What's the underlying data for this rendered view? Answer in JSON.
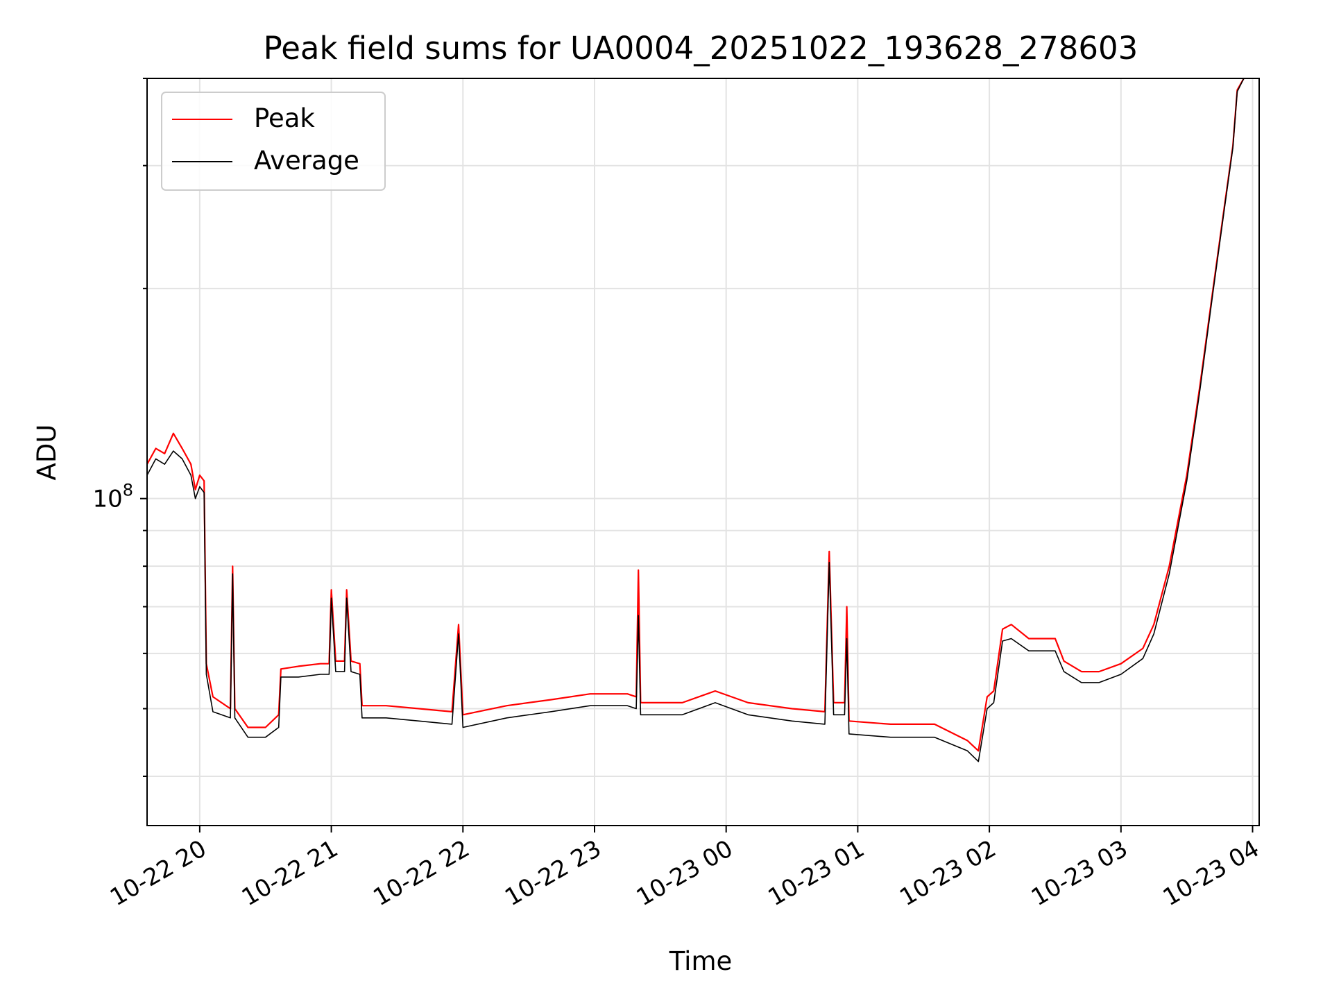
{
  "chart_data": {
    "type": "line",
    "title": "Peak field sums for UA0004_20251022_193628_278603",
    "xlabel": "Time",
    "ylabel": "ADU",
    "y_scale": "log",
    "ytick_labels": [
      {
        "value": 100000000,
        "base": "10",
        "exp": "8"
      }
    ],
    "xlim": [
      "2025-10-22 19:36",
      "2025-10-23 04:03"
    ],
    "ylim": [
      34000000,
      400000000
    ],
    "xtick_labels": [
      {
        "t": "2025-10-22 20:00",
        "label": "10-22 20"
      },
      {
        "t": "2025-10-22 21:00",
        "label": "10-22 21"
      },
      {
        "t": "2025-10-22 22:00",
        "label": "10-22 22"
      },
      {
        "t": "2025-10-22 23:00",
        "label": "10-22 23"
      },
      {
        "t": "2025-10-23 00:00",
        "label": "10-23 00"
      },
      {
        "t": "2025-10-23 01:00",
        "label": "10-23 01"
      },
      {
        "t": "2025-10-23 02:00",
        "label": "10-23 02"
      },
      {
        "t": "2025-10-23 03:00",
        "label": "10-23 03"
      },
      {
        "t": "2025-10-23 04:00",
        "label": "10-23 04"
      }
    ],
    "grid": true,
    "legend_position": "top-left",
    "series": [
      {
        "name": "Peak",
        "color": "#ff0000",
        "points": [
          [
            "2025-10-22 19:36",
            112000000
          ],
          [
            "2025-10-22 19:40",
            118000000
          ],
          [
            "2025-10-22 19:44",
            116000000
          ],
          [
            "2025-10-22 19:48",
            124000000
          ],
          [
            "2025-10-22 19:52",
            118000000
          ],
          [
            "2025-10-22 19:56",
            112000000
          ],
          [
            "2025-10-22 19:58",
            103000000
          ],
          [
            "2025-10-22 20:00",
            108000000
          ],
          [
            "2025-10-22 20:02",
            106000000
          ],
          [
            "2025-10-22 20:03",
            58000000
          ],
          [
            "2025-10-22 20:06",
            52000000
          ],
          [
            "2025-10-22 20:14",
            50000000
          ],
          [
            "2025-10-22 20:15",
            80000000
          ],
          [
            "2025-10-22 20:16",
            50000000
          ],
          [
            "2025-10-22 20:22",
            47000000
          ],
          [
            "2025-10-22 20:30",
            47000000
          ],
          [
            "2025-10-22 20:36",
            49000000
          ],
          [
            "2025-10-22 20:37",
            57000000
          ],
          [
            "2025-10-22 20:45",
            57500000
          ],
          [
            "2025-10-22 20:55",
            58000000
          ],
          [
            "2025-10-22 20:59",
            58000000
          ],
          [
            "2025-10-22 21:00",
            74000000
          ],
          [
            "2025-10-22 21:02",
            58500000
          ],
          [
            "2025-10-22 21:06",
            58500000
          ],
          [
            "2025-10-22 21:07",
            74000000
          ],
          [
            "2025-10-22 21:09",
            58500000
          ],
          [
            "2025-10-22 21:13",
            58000000
          ],
          [
            "2025-10-22 21:14",
            50500000
          ],
          [
            "2025-10-22 21:25",
            50500000
          ],
          [
            "2025-10-22 21:40",
            50000000
          ],
          [
            "2025-10-22 21:55",
            49500000
          ],
          [
            "2025-10-22 21:58",
            66000000
          ],
          [
            "2025-10-22 22:00",
            49000000
          ],
          [
            "2025-10-22 22:20",
            50500000
          ],
          [
            "2025-10-22 22:40",
            51500000
          ],
          [
            "2025-10-22 22:58",
            52500000
          ],
          [
            "2025-10-22 23:15",
            52500000
          ],
          [
            "2025-10-22 23:19",
            52000000
          ],
          [
            "2025-10-22 23:20",
            79000000
          ],
          [
            "2025-10-22 23:21",
            51000000
          ],
          [
            "2025-10-22 23:40",
            51000000
          ],
          [
            "2025-10-22 23:55",
            53000000
          ],
          [
            "2025-10-23 00:10",
            51000000
          ],
          [
            "2025-10-23 00:30",
            50000000
          ],
          [
            "2025-10-23 00:45",
            49500000
          ],
          [
            "2025-10-23 00:47",
            84000000
          ],
          [
            "2025-10-23 00:49",
            51000000
          ],
          [
            "2025-10-23 00:54",
            51000000
          ],
          [
            "2025-10-23 00:55",
            70000000
          ],
          [
            "2025-10-23 00:56",
            48000000
          ],
          [
            "2025-10-23 01:15",
            47500000
          ],
          [
            "2025-10-23 01:35",
            47500000
          ],
          [
            "2025-10-23 01:50",
            45000000
          ],
          [
            "2025-10-23 01:55",
            43500000
          ],
          [
            "2025-10-23 01:59",
            52000000
          ],
          [
            "2025-10-23 02:02",
            53000000
          ],
          [
            "2025-10-23 02:06",
            65000000
          ],
          [
            "2025-10-23 02:10",
            66000000
          ],
          [
            "2025-10-23 02:18",
            63000000
          ],
          [
            "2025-10-23 02:25",
            63000000
          ],
          [
            "2025-10-23 02:30",
            63000000
          ],
          [
            "2025-10-23 02:34",
            58500000
          ],
          [
            "2025-10-23 02:42",
            56500000
          ],
          [
            "2025-10-23 02:50",
            56500000
          ],
          [
            "2025-10-23 03:00",
            58000000
          ],
          [
            "2025-10-23 03:10",
            61000000
          ],
          [
            "2025-10-23 03:15",
            66000000
          ],
          [
            "2025-10-23 03:22",
            80000000
          ],
          [
            "2025-10-23 03:30",
            108000000
          ],
          [
            "2025-10-23 03:36",
            145000000
          ],
          [
            "2025-10-23 03:42",
            200000000
          ],
          [
            "2025-10-23 03:47",
            260000000
          ],
          [
            "2025-10-23 03:51",
            320000000
          ],
          [
            "2025-10-23 03:53",
            385000000
          ],
          [
            "2025-10-23 03:56",
            400000000
          ]
        ]
      },
      {
        "name": "Average",
        "color": "#000000",
        "points": [
          [
            "2025-10-22 19:36",
            108000000
          ],
          [
            "2025-10-22 19:40",
            114000000
          ],
          [
            "2025-10-22 19:44",
            112000000
          ],
          [
            "2025-10-22 19:48",
            117000000
          ],
          [
            "2025-10-22 19:52",
            114000000
          ],
          [
            "2025-10-22 19:56",
            108000000
          ],
          [
            "2025-10-22 19:58",
            100000000
          ],
          [
            "2025-10-22 20:00",
            104000000
          ],
          [
            "2025-10-22 20:02",
            102000000
          ],
          [
            "2025-10-22 20:03",
            56000000
          ],
          [
            "2025-10-22 20:06",
            49500000
          ],
          [
            "2025-10-22 20:14",
            48500000
          ],
          [
            "2025-10-22 20:15",
            78000000
          ],
          [
            "2025-10-22 20:16",
            48500000
          ],
          [
            "2025-10-22 20:22",
            45500000
          ],
          [
            "2025-10-22 20:30",
            45500000
          ],
          [
            "2025-10-22 20:36",
            47000000
          ],
          [
            "2025-10-22 20:37",
            55500000
          ],
          [
            "2025-10-22 20:45",
            55500000
          ],
          [
            "2025-10-22 20:55",
            56000000
          ],
          [
            "2025-10-22 20:59",
            56000000
          ],
          [
            "2025-10-22 21:00",
            72000000
          ],
          [
            "2025-10-22 21:02",
            56500000
          ],
          [
            "2025-10-22 21:06",
            56500000
          ],
          [
            "2025-10-22 21:07",
            72000000
          ],
          [
            "2025-10-22 21:09",
            56500000
          ],
          [
            "2025-10-22 21:13",
            56000000
          ],
          [
            "2025-10-22 21:14",
            48500000
          ],
          [
            "2025-10-22 21:25",
            48500000
          ],
          [
            "2025-10-22 21:40",
            48000000
          ],
          [
            "2025-10-22 21:55",
            47500000
          ],
          [
            "2025-10-22 21:58",
            64000000
          ],
          [
            "2025-10-22 22:00",
            47000000
          ],
          [
            "2025-10-22 22:20",
            48500000
          ],
          [
            "2025-10-22 22:40",
            49500000
          ],
          [
            "2025-10-22 22:58",
            50500000
          ],
          [
            "2025-10-22 23:15",
            50500000
          ],
          [
            "2025-10-22 23:19",
            50000000
          ],
          [
            "2025-10-22 23:20",
            68000000
          ],
          [
            "2025-10-22 23:21",
            49000000
          ],
          [
            "2025-10-22 23:40",
            49000000
          ],
          [
            "2025-10-22 23:55",
            51000000
          ],
          [
            "2025-10-23 00:10",
            49000000
          ],
          [
            "2025-10-23 00:30",
            48000000
          ],
          [
            "2025-10-23 00:45",
            47500000
          ],
          [
            "2025-10-23 00:47",
            81000000
          ],
          [
            "2025-10-23 00:49",
            49000000
          ],
          [
            "2025-10-23 00:54",
            49000000
          ],
          [
            "2025-10-23 00:55",
            63000000
          ],
          [
            "2025-10-23 00:56",
            46000000
          ],
          [
            "2025-10-23 01:15",
            45500000
          ],
          [
            "2025-10-23 01:35",
            45500000
          ],
          [
            "2025-10-23 01:50",
            43500000
          ],
          [
            "2025-10-23 01:55",
            42000000
          ],
          [
            "2025-10-23 01:59",
            50000000
          ],
          [
            "2025-10-23 02:02",
            51000000
          ],
          [
            "2025-10-23 02:06",
            62500000
          ],
          [
            "2025-10-23 02:10",
            63000000
          ],
          [
            "2025-10-23 02:18",
            60500000
          ],
          [
            "2025-10-23 02:25",
            60500000
          ],
          [
            "2025-10-23 02:30",
            60500000
          ],
          [
            "2025-10-23 02:34",
            56500000
          ],
          [
            "2025-10-23 02:42",
            54500000
          ],
          [
            "2025-10-23 02:50",
            54500000
          ],
          [
            "2025-10-23 03:00",
            56000000
          ],
          [
            "2025-10-23 03:10",
            59000000
          ],
          [
            "2025-10-23 03:15",
            64000000
          ],
          [
            "2025-10-23 03:22",
            78000000
          ],
          [
            "2025-10-23 03:30",
            106000000
          ],
          [
            "2025-10-23 03:36",
            143000000
          ],
          [
            "2025-10-23 03:42",
            198000000
          ],
          [
            "2025-10-23 03:47",
            258000000
          ],
          [
            "2025-10-23 03:51",
            318000000
          ],
          [
            "2025-10-23 03:53",
            383000000
          ],
          [
            "2025-10-23 03:56",
            400000000
          ]
        ]
      }
    ]
  }
}
